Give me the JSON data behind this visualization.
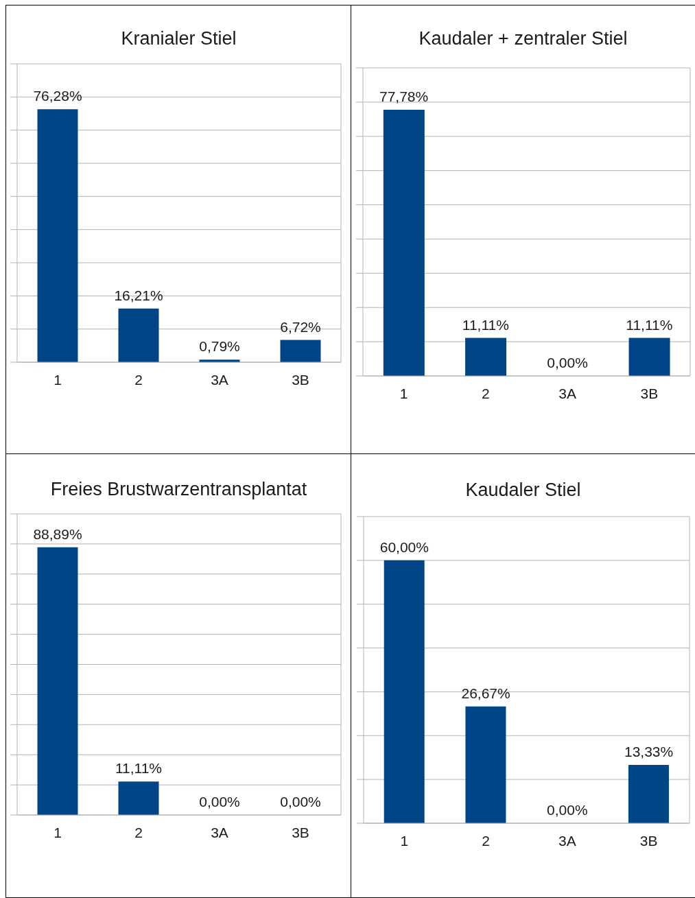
{
  "chart_data": [
    {
      "type": "bar",
      "title": "Kranialer Stiel",
      "categories": [
        "1",
        "2",
        "3A",
        "3B"
      ],
      "values": [
        76.28,
        16.21,
        0.79,
        6.72
      ],
      "value_labels": [
        "76,28%",
        "16,21%",
        "0,79%",
        "6,72%"
      ],
      "color": "#004586",
      "ylim": [
        0,
        90
      ],
      "yticks": [
        {
          "value": 0,
          "label": null
        },
        {
          "value": 10,
          "label": null
        },
        {
          "value": 20,
          "label": null
        },
        {
          "value": 30,
          "label": null
        },
        {
          "value": 40,
          "label": null
        },
        {
          "value": 50,
          "label": null
        },
        {
          "value": 60,
          "label": null
        },
        {
          "value": 70,
          "label": null
        },
        {
          "value": 80,
          "label": null
        },
        {
          "value": 90,
          "label": null
        }
      ],
      "tick_labels": "x",
      "grid": "y"
    },
    {
      "type": "bar",
      "title": "Kaudaler + zentraler Stiel",
      "categories": [
        "1",
        "2",
        "3A",
        "3B"
      ],
      "values": [
        77.78,
        11.11,
        0,
        11.11
      ],
      "value_labels": [
        "77,78%",
        "11,11%",
        "0,00%",
        "11,11%"
      ],
      "color": "#004586",
      "ylim": [
        0,
        90
      ],
      "yticks": [
        {
          "value": 0,
          "label": null
        },
        {
          "value": 10,
          "label": null
        },
        {
          "value": 20,
          "label": null
        },
        {
          "value": 30,
          "label": null
        },
        {
          "value": 40,
          "label": null
        },
        {
          "value": 50,
          "label": null
        },
        {
          "value": 60,
          "label": null
        },
        {
          "value": 70,
          "label": null
        },
        {
          "value": 80,
          "label": null
        },
        {
          "value": 90,
          "label": null
        }
      ],
      "tick_labels": "x",
      "grid": "y"
    },
    {
      "type": "bar",
      "title": "Freies Brustwarzentransplantat",
      "categories": [
        "1",
        "2",
        "3A",
        "3B"
      ],
      "values": [
        88.89,
        11.11,
        0,
        0
      ],
      "value_labels": [
        "88,89%",
        "11,11%",
        "0,00%",
        "0,00%"
      ],
      "color": "#004586",
      "ylim": [
        0,
        100
      ],
      "yticks": [
        {
          "value": 0,
          "label": null
        },
        {
          "value": 10,
          "label": null
        },
        {
          "value": 20,
          "label": null
        },
        {
          "value": 30,
          "label": null
        },
        {
          "value": 40,
          "label": null
        },
        {
          "value": 50,
          "label": null
        },
        {
          "value": 60,
          "label": null
        },
        {
          "value": 70,
          "label": null
        },
        {
          "value": 80,
          "label": null
        },
        {
          "value": 90,
          "label": null
        },
        {
          "value": 100,
          "label": null
        }
      ],
      "tick_labels": "x",
      "grid": "y"
    },
    {
      "type": "bar",
      "title": "Kaudaler Stiel",
      "categories": [
        "1",
        "2",
        "3A",
        "3B"
      ],
      "values": [
        60,
        26.67,
        0,
        13.33
      ],
      "value_labels": [
        "60,00%",
        "26,67%",
        "0,00%",
        "13,33%"
      ],
      "color": "#004586",
      "ylim": [
        0,
        70
      ],
      "yticks": [
        {
          "value": 0,
          "label": null
        },
        {
          "value": 10,
          "label": null
        },
        {
          "value": 20,
          "label": null
        },
        {
          "value": 30,
          "label": null
        },
        {
          "value": 40,
          "label": null
        },
        {
          "value": 50,
          "label": null
        },
        {
          "value": 60,
          "label": null
        },
        {
          "value": 70,
          "label": null
        }
      ],
      "tick_labels": "x",
      "grid": "y"
    }
  ]
}
